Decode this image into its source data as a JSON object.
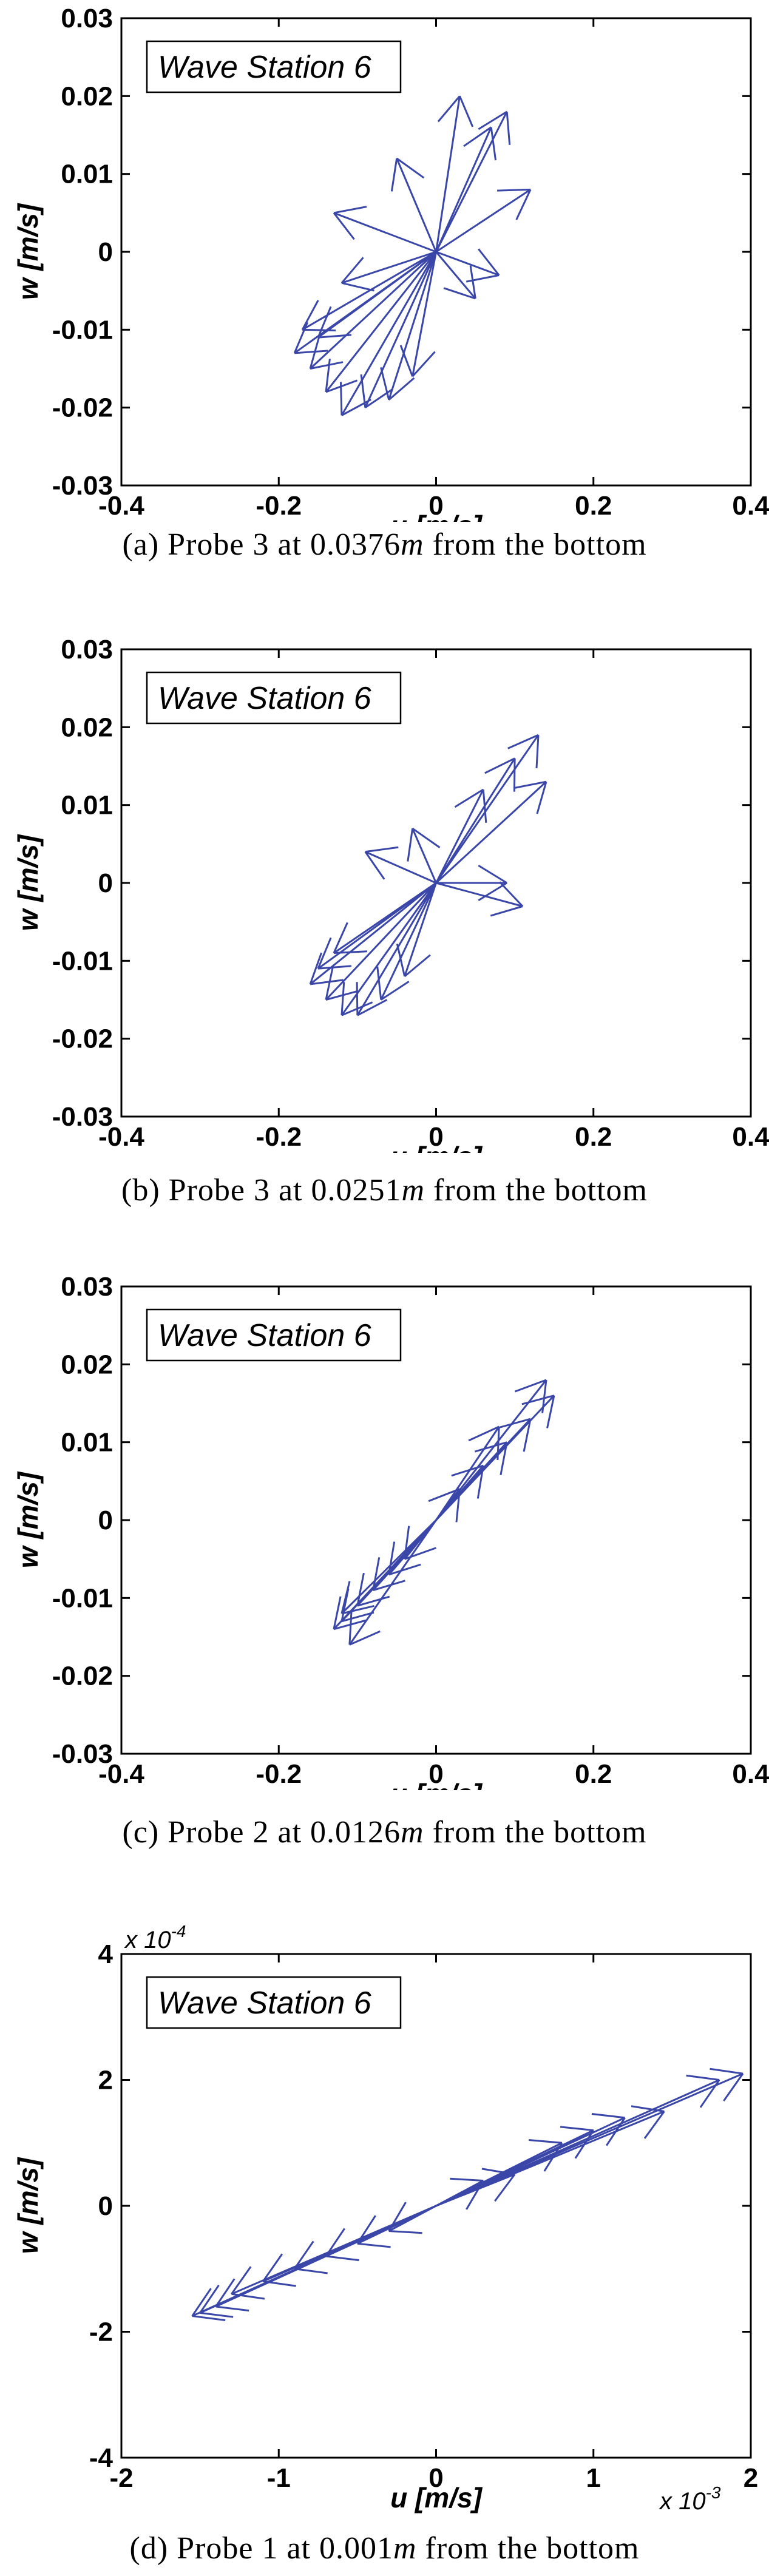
{
  "chart_data": [
    {
      "type": "quiver",
      "legend": "Wave Station 6",
      "xlabel": "u [m/s]",
      "ylabel": "w [m/s]",
      "xlim": [
        -0.4,
        0.4
      ],
      "ylim": [
        -0.03,
        0.03
      ],
      "xticks": [
        "-0.4",
        "-0.2",
        "0",
        "0.2",
        "0.4"
      ],
      "yticks": [
        "0.03",
        "0.02",
        "0.01",
        "0",
        "-0.01",
        "-0.02",
        "-0.03"
      ],
      "caption": {
        "prefix": "(a) Probe 3 at 0.0376",
        "unit": "m",
        "suffix": "from the bottom"
      },
      "vectors": [
        [
          0.03,
          0.02
        ],
        [
          0.09,
          0.018
        ],
        [
          0.12,
          0.008
        ],
        [
          0.07,
          0.016
        ],
        [
          -0.05,
          0.012
        ],
        [
          0.08,
          -0.003
        ],
        [
          0.05,
          -0.006
        ],
        [
          -0.13,
          0.005
        ],
        [
          -0.12,
          -0.004
        ],
        [
          -0.17,
          -0.01
        ],
        [
          -0.16,
          -0.015
        ],
        [
          -0.14,
          -0.018
        ],
        [
          -0.12,
          -0.021
        ],
        [
          -0.09,
          -0.02
        ],
        [
          -0.06,
          -0.019
        ],
        [
          -0.03,
          -0.016
        ],
        [
          -0.18,
          -0.013
        ],
        [
          -0.15,
          -0.011
        ]
      ]
    },
    {
      "type": "quiver",
      "legend": "Wave Station 6",
      "xlabel": "u [m/s]",
      "ylabel": "w [m/s]",
      "xlim": [
        -0.4,
        0.4
      ],
      "ylim": [
        -0.03,
        0.03
      ],
      "xticks": [
        "-0.4",
        "-0.2",
        "0",
        "0.2",
        "0.4"
      ],
      "yticks": [
        "0.03",
        "0.02",
        "0.01",
        "0",
        "-0.01",
        "-0.02",
        "-0.03"
      ],
      "caption": {
        "prefix": "(b) Probe 3 at 0.0251",
        "unit": "m",
        "suffix": "from the bottom"
      },
      "vectors": [
        [
          0.13,
          0.019
        ],
        [
          0.14,
          0.013
        ],
        [
          0.1,
          0.016
        ],
        [
          0.06,
          0.012
        ],
        [
          -0.03,
          0.007
        ],
        [
          0.09,
          0.0
        ],
        [
          0.11,
          -0.003
        ],
        [
          -0.09,
          0.004
        ],
        [
          -0.15,
          -0.011
        ],
        [
          -0.14,
          -0.015
        ],
        [
          -0.12,
          -0.017
        ],
        [
          -0.1,
          -0.017
        ],
        [
          -0.07,
          -0.015
        ],
        [
          -0.04,
          -0.012
        ],
        [
          -0.13,
          -0.009
        ],
        [
          -0.16,
          -0.013
        ]
      ]
    },
    {
      "type": "quiver",
      "legend": "Wave Station 6",
      "xlabel": "u [m/s]",
      "ylabel": "w [m/s]",
      "xlim": [
        -0.4,
        0.4
      ],
      "ylim": [
        -0.03,
        0.03
      ],
      "xticks": [
        "-0.4",
        "-0.2",
        "0",
        "0.2",
        "0.4"
      ],
      "yticks": [
        "0.03",
        "0.02",
        "0.01",
        "0",
        "-0.01",
        "-0.02",
        "-0.03"
      ],
      "caption": {
        "prefix": "(c) Probe 2 at 0.0126",
        "unit": "m",
        "suffix": "from the bottom"
      },
      "vectors": [
        [
          0.14,
          0.018
        ],
        [
          0.15,
          0.016
        ],
        [
          0.12,
          0.013
        ],
        [
          0.09,
          0.01
        ],
        [
          0.06,
          0.007
        ],
        [
          0.03,
          0.004
        ],
        [
          0.08,
          0.012
        ],
        [
          -0.13,
          -0.014
        ],
        [
          -0.12,
          -0.013
        ],
        [
          -0.1,
          -0.011
        ],
        [
          -0.08,
          -0.009
        ],
        [
          -0.06,
          -0.007
        ],
        [
          -0.04,
          -0.005
        ],
        [
          -0.11,
          -0.016
        ],
        [
          -0.12,
          -0.012
        ]
      ]
    },
    {
      "type": "quiver",
      "legend": "Wave Station 6",
      "xlabel": "u [m/s]",
      "ylabel": "w [m/s]",
      "xlim": [
        -2,
        2
      ],
      "ylim": [
        -4,
        4
      ],
      "x_multiplier": {
        "base": "x 10",
        "exp": "-3"
      },
      "y_multiplier": {
        "base": "x 10",
        "exp": "-4"
      },
      "xticks": [
        "-2",
        "-1",
        "0",
        "1",
        "2"
      ],
      "yticks": [
        "4",
        "2",
        "0",
        "-2",
        "-4"
      ],
      "caption": {
        "prefix": "(d) Probe 1 at 0.001",
        "unit": "m",
        "suffix": "from the bottom"
      },
      "vectors": [
        [
          1.95,
          2.1
        ],
        [
          1.8,
          2.0
        ],
        [
          1.45,
          1.5
        ],
        [
          1.2,
          1.4
        ],
        [
          1.0,
          1.2
        ],
        [
          0.8,
          1.0
        ],
        [
          0.5,
          0.5
        ],
        [
          0.3,
          0.4
        ],
        [
          -1.5,
          -1.7
        ],
        [
          -1.4,
          -1.6
        ],
        [
          -1.3,
          -1.4
        ],
        [
          -1.1,
          -1.2
        ],
        [
          -0.9,
          -1.0
        ],
        [
          -0.7,
          -0.8
        ],
        [
          -0.5,
          -0.6
        ],
        [
          -0.3,
          -0.4
        ],
        [
          -1.55,
          -1.75
        ]
      ]
    }
  ]
}
